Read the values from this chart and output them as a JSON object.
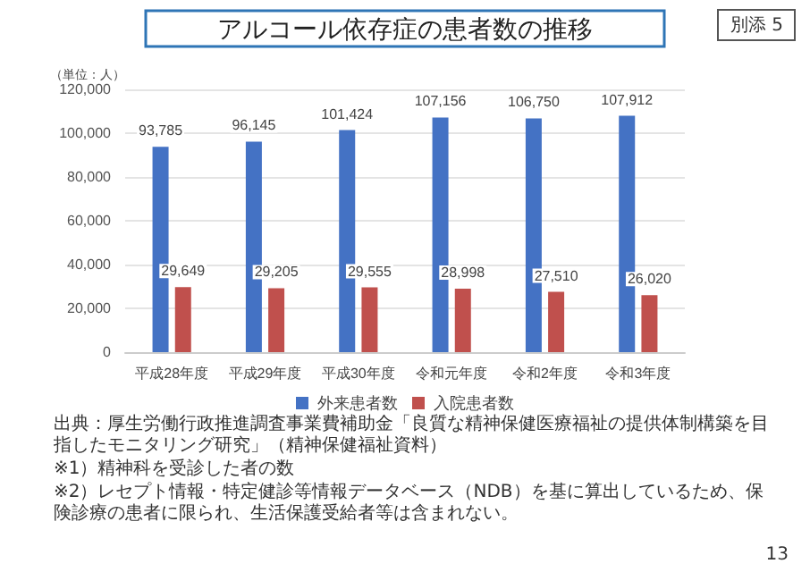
{
  "chart_data": {
    "type": "bar",
    "title": "アルコール依存症の患者数の推移",
    "ylabel": "（単位：人）",
    "categories": [
      "平成28年度",
      "平成29年度",
      "平成30年度",
      "令和元年度",
      "令和2年度",
      "令和3年度"
    ],
    "series": [
      {
        "name": "外来患者数",
        "color": "#4472c4",
        "values": [
          93785,
          96145,
          101424,
          107156,
          106750,
          107912
        ],
        "value_labels": [
          "93,785",
          "96,145",
          "101,424",
          "107,156",
          "106,750",
          "107,912"
        ]
      },
      {
        "name": "入院患者数",
        "color": "#c0504d",
        "values": [
          29649,
          29205,
          29555,
          28998,
          27510,
          26020
        ],
        "value_labels": [
          "29,649",
          "29,205",
          "29,555",
          "28,998",
          "27,510",
          "26,020"
        ]
      }
    ],
    "ylim": [
      0,
      120000
    ],
    "yticks": [
      0,
      {
        "value": 20000,
        "label": "20,000"
      },
      {
        "value": 40000,
        "label": "40,000"
      },
      {
        "value": 60000,
        "label": "60,000"
      },
      {
        "value": 80000,
        "label": "80,000"
      },
      {
        "value": 100000,
        "label": "100,000"
      },
      {
        "value": 120000,
        "label": "120,000"
      }
    ],
    "grid": "y",
    "legend": "bottom",
    "annotations": [
      "別添 5",
      "出典：厚生労働行政推進調査事業費補助金「良質な精神保健医療福祉の提供体制構築を目指したモニタリング研究」（精神保健福祉資料）",
      "※1）精神科を受診した者の数",
      "※2）レセプト情報・特定健診等情報データベース（NDB）を基に算出しているため、保険診療の患者に限られ、生活保護受給者等は含まれない。",
      "13"
    ]
  }
}
